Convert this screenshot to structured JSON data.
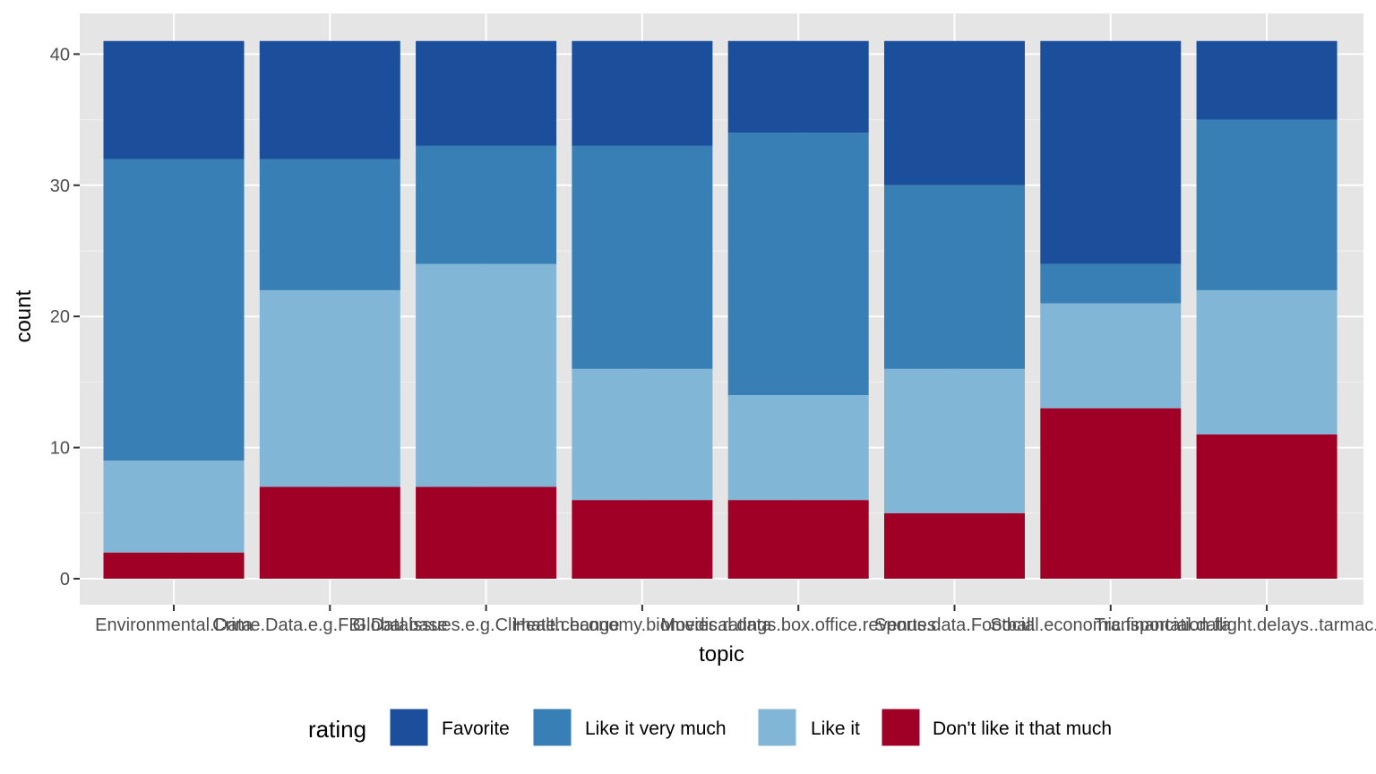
{
  "chart_data": {
    "type": "bar",
    "stacked": true,
    "xlabel": "topic",
    "ylabel": "count",
    "ylim": [
      0,
      42
    ],
    "yticks": [
      0,
      10,
      20,
      30,
      40
    ],
    "ytick_labels": [
      "0",
      "10",
      "20",
      "30",
      "40"
    ],
    "categories": [
      "Environmental.Data",
      "Crime.Data.e.g.FBI.Database",
      "Global.issues.e.g.Climate.change",
      "Health.economy.biomedical.data",
      "Movies.ratings.box.office.revenues",
      "Sports.data.Football",
      "Social.economic.financial.data",
      "Transportation.flight.delays..tarmac.waits..a"
    ],
    "legend": {
      "title": "rating",
      "position": "bottom"
    },
    "series": [
      {
        "name": "Favorite",
        "color": "#1b4f9c",
        "values": [
          9,
          9,
          8,
          8,
          7,
          11,
          17,
          6
        ]
      },
      {
        "name": "Like it very much",
        "color": "#377fb5",
        "values": [
          23,
          10,
          9,
          17,
          20,
          14,
          3,
          13
        ]
      },
      {
        "name": "Like it",
        "color": "#81b6d6",
        "values": [
          7,
          15,
          17,
          10,
          8,
          11,
          8,
          11
        ]
      },
      {
        "name": "Don't like it that much",
        "color": "#a00025",
        "values": [
          2,
          7,
          7,
          6,
          6,
          5,
          13,
          11
        ]
      }
    ]
  }
}
